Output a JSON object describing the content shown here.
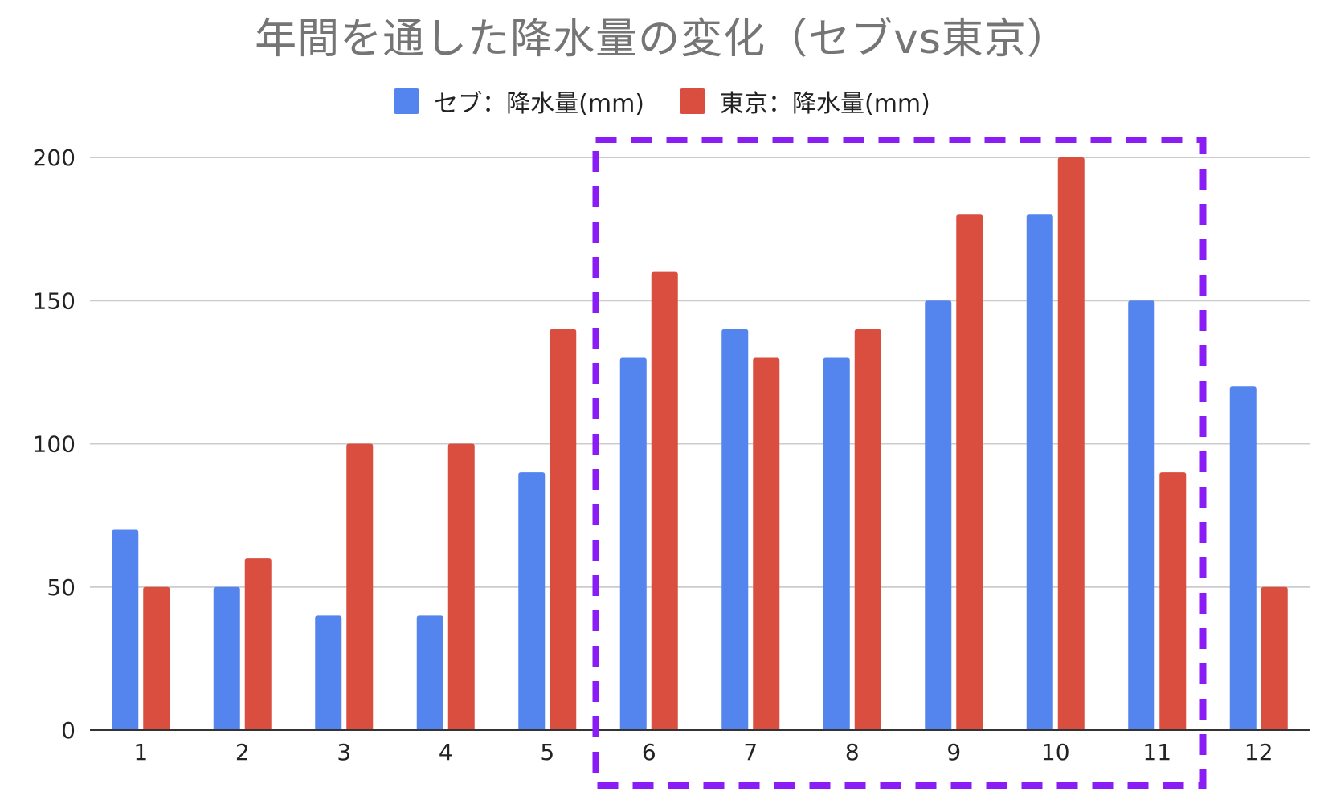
{
  "chart_data": {
    "type": "bar",
    "title": "年間を通した降水量の変化（セブvs東京）",
    "categories": [
      "1",
      "2",
      "3",
      "4",
      "5",
      "6",
      "7",
      "8",
      "9",
      "10",
      "11",
      "12"
    ],
    "series": [
      {
        "name": "セブ：降水量(mm)",
        "color": "#5484ed",
        "values": [
          70,
          50,
          40,
          40,
          90,
          130,
          140,
          130,
          150,
          180,
          150,
          120
        ]
      },
      {
        "name": "東京：降水量(mm)",
        "color": "#d94e3f",
        "values": [
          50,
          60,
          100,
          100,
          140,
          160,
          130,
          140,
          180,
          200,
          90,
          50
        ]
      }
    ],
    "yticks": [
      "0",
      "50",
      "100",
      "150",
      "200"
    ],
    "ylim": [
      0,
      200
    ],
    "grid": true,
    "legend_position": "top-center",
    "highlight": {
      "from_category": "6",
      "to_category": "11",
      "color": "#8a1cf5",
      "style": "dashed"
    }
  }
}
